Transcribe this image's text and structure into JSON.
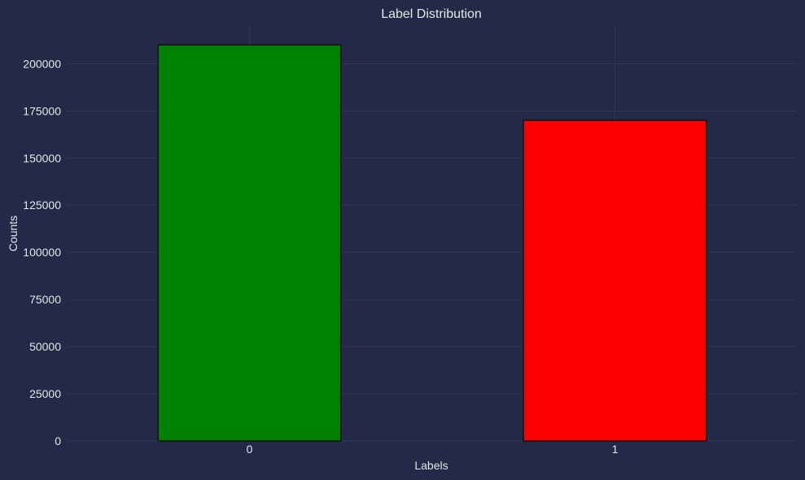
{
  "chart_data": {
    "type": "bar",
    "title": "Label Distribution",
    "xlabel": "Labels",
    "ylabel": "Counts",
    "categories": [
      "0",
      "1"
    ],
    "values": [
      210000,
      170000
    ],
    "bar_colors": [
      "#008000",
      "#ff0000"
    ],
    "bar_edge_color": "#111111",
    "ylim": [
      0,
      220000
    ],
    "yticks": [
      0,
      25000,
      50000,
      75000,
      100000,
      125000,
      150000,
      175000,
      200000
    ],
    "grid": true,
    "background": "#222a47",
    "grid_color": "#2f3859"
  }
}
